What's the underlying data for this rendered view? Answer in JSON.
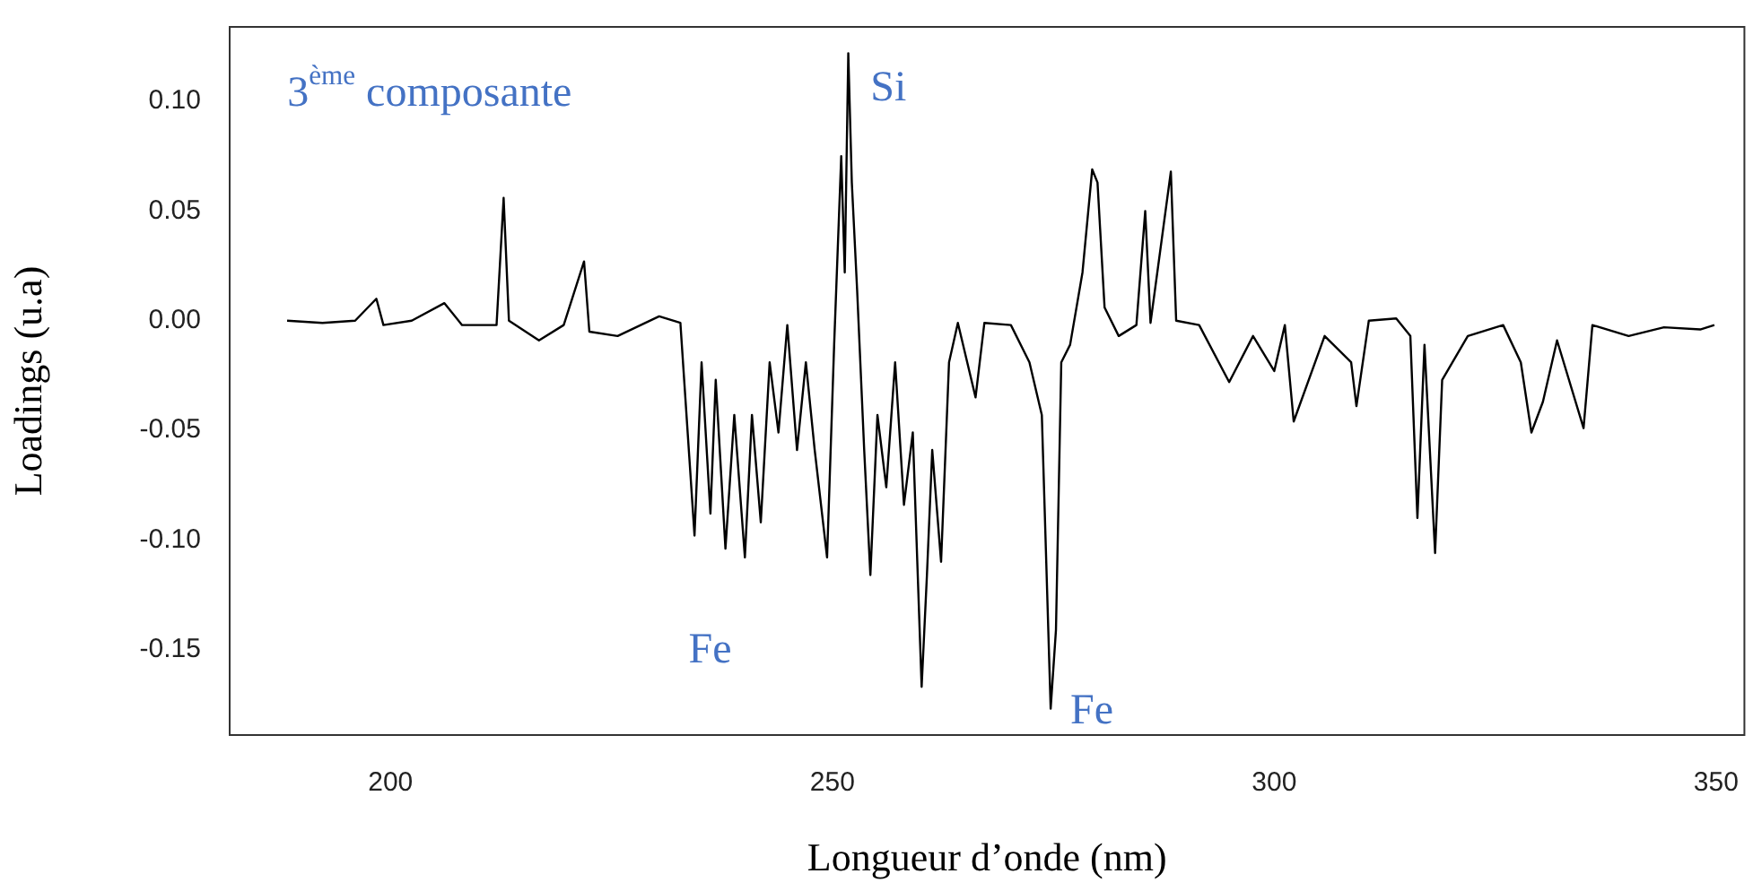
{
  "chart_data": {
    "type": "line",
    "xlabel": "Longueur d’onde (nm)",
    "ylabel": "Loadings (u.a)",
    "annotations": [
      "3$^{ème}$ composante",
      "Si",
      "Fe",
      "Fe"
    ],
    "xlim": [
      181.8,
      353.2
    ],
    "ylim": [
      -0.189,
      0.134
    ],
    "xticks": [
      200,
      250,
      300,
      350
    ],
    "yticks": [
      {
        "value": 0.1,
        "label": "0.10"
      },
      0.05,
      {
        "value": 0,
        "label": "0.00"
      },
      -0.05,
      {
        "value": -0.1,
        "label": "-0.10"
      },
      -0.15
    ],
    "grid": false,
    "legend": false,
    "marker": "none",
    "line_style": "solid",
    "series": [
      {
        "color": "#000000",
        "x": [
          188.3,
          192.3,
          196.0,
          198.4,
          199.2,
          202.4,
          206.1,
          208.1,
          212.0,
          212.8,
          213.4,
          216.8,
          219.6,
          221.9,
          222.5,
          225.7,
          230.4,
          232.8,
          234.4,
          235.2,
          236.2,
          236.8,
          237.9,
          238.9,
          240.1,
          240.9,
          241.9,
          242.9,
          243.9,
          244.9,
          246.0,
          247.0,
          248.0,
          249.4,
          250.2,
          251.0,
          251.4,
          251.8,
          252.2,
          252.8,
          253.6,
          254.3,
          255.1,
          256.1,
          257.1,
          258.1,
          259.1,
          260.1,
          260.7,
          261.3,
          262.3,
          263.2,
          264.2,
          266.2,
          267.2,
          270.2,
          272.3,
          273.7,
          274.7,
          275.3,
          275.9,
          276.9,
          278.3,
          279.4,
          280.0,
          280.8,
          282.4,
          284.4,
          285.4,
          286.0,
          288.3,
          288.9,
          291.5,
          294.9,
          297.6,
          300.0,
          301.2,
          302.2,
          305.7,
          308.7,
          309.3,
          310.7,
          313.8,
          315.4,
          316.2,
          317.0,
          318.2,
          319.0,
          321.9,
          325.9,
          327.9,
          329.1,
          330.4,
          332.0,
          335.0,
          336.0,
          340.1,
          344.1,
          348.2,
          349.8
        ],
        "values": [
          0,
          -0.001,
          0,
          0.01,
          -0.002,
          0,
          0.008,
          -0.002,
          -0.002,
          0.056,
          0,
          -0.009,
          -0.002,
          0.027,
          -0.005,
          -0.007,
          0.002,
          -0.001,
          -0.098,
          -0.019,
          -0.088,
          -0.027,
          -0.104,
          -0.043,
          -0.108,
          -0.043,
          -0.092,
          -0.019,
          -0.051,
          -0.002,
          -0.059,
          -0.019,
          -0.059,
          -0.108,
          -0.011,
          0.075,
          0.022,
          0.122,
          0.063,
          0.014,
          -0.059,
          -0.116,
          -0.043,
          -0.076,
          -0.019,
          -0.084,
          -0.051,
          -0.167,
          -0.116,
          -0.059,
          -0.11,
          -0.019,
          -0.001,
          -0.035,
          -0.001,
          -0.002,
          -0.019,
          -0.043,
          -0.177,
          -0.141,
          -0.019,
          -0.011,
          0.022,
          0.069,
          0.063,
          0.006,
          -0.007,
          -0.002,
          0.05,
          -0.001,
          0.068,
          0,
          -0.002,
          -0.028,
          -0.007,
          -0.023,
          -0.002,
          -0.046,
          -0.007,
          -0.019,
          -0.039,
          0,
          0.001,
          -0.007,
          -0.09,
          -0.011,
          -0.106,
          -0.027,
          -0.007,
          -0.002,
          -0.019,
          -0.051,
          -0.037,
          -0.009,
          -0.049,
          -0.002,
          -0.007,
          -0.003,
          -0.004,
          -0.002
        ]
      }
    ]
  }
}
